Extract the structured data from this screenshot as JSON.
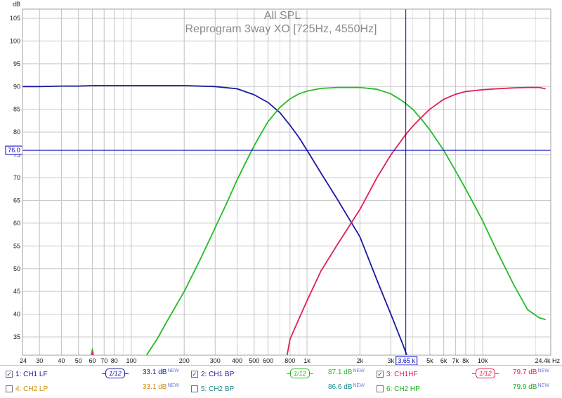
{
  "colors": {
    "background": "#ffffff",
    "grid_major": "#c8c8c8",
    "grid_minor": "#e4e4e4",
    "axis_text": "#1a1a1a",
    "title_text": "#8a8a8a",
    "cursor": "#0000c0",
    "ch1_lf": "#1a1aa0",
    "ch1_bp": "#22bb22",
    "ch1_hf": "#e02050",
    "ch2_lp": "#c89010",
    "ch2_bp": "#1a8a8a",
    "ch2_hp": "#22aa22"
  },
  "chart_data": {
    "type": "line",
    "title": "All SPL",
    "subtitle": "Reprogram 3way XO [725Hz, 4550Hz]",
    "ylabel": "dB",
    "xlabel_unit": "Hz",
    "x_scale": "log",
    "xlim": [
      24,
      24400
    ],
    "ylim": [
      31,
      107
    ],
    "grid": true,
    "x_tick_labels": [
      {
        "v": 24,
        "t": "24"
      },
      {
        "v": 30,
        "t": "30"
      },
      {
        "v": 40,
        "t": "40"
      },
      {
        "v": 50,
        "t": "50"
      },
      {
        "v": 60,
        "t": "60"
      },
      {
        "v": 70,
        "t": "70"
      },
      {
        "v": 80,
        "t": "80"
      },
      {
        "v": 100,
        "t": "100"
      },
      {
        "v": 200,
        "t": "200"
      },
      {
        "v": 300,
        "t": "300"
      },
      {
        "v": 400,
        "t": "400"
      },
      {
        "v": 500,
        "t": "500"
      },
      {
        "v": 600,
        "t": "600"
      },
      {
        "v": 800,
        "t": "800"
      },
      {
        "v": 1000,
        "t": "1k"
      },
      {
        "v": 2000,
        "t": "2k"
      },
      {
        "v": 3000,
        "t": "3k"
      },
      {
        "v": 5000,
        "t": "5k"
      },
      {
        "v": 6000,
        "t": "6k"
      },
      {
        "v": 7000,
        "t": "7k"
      },
      {
        "v": 8000,
        "t": "8k"
      },
      {
        "v": 10000,
        "t": "10k"
      },
      {
        "v": 24400,
        "t": "24.4k Hz"
      }
    ],
    "y_ticks": [
      35,
      40,
      45,
      50,
      55,
      60,
      65,
      70,
      75,
      80,
      85,
      90,
      95,
      100,
      105
    ],
    "cursor": {
      "x": 3650,
      "x_label": "3.65 k",
      "y": 76.0,
      "y_label": "76.0"
    },
    "series": [
      {
        "name": "1: CH1 LF",
        "color": "#1a1aa0",
        "x": [
          24,
          30,
          40,
          50,
          60,
          80,
          100,
          150,
          200,
          300,
          400,
          500,
          600,
          700,
          800,
          900,
          1000,
          1200,
          1500,
          2000,
          2500,
          3000,
          3500,
          3700
        ],
        "y": [
          90.0,
          90.0,
          90.1,
          90.1,
          90.2,
          90.2,
          90.2,
          90.2,
          90.2,
          90.0,
          89.5,
          88.2,
          86.5,
          84.3,
          81.5,
          78.8,
          76.0,
          71.0,
          65.0,
          57.0,
          47.5,
          40.0,
          33.5,
          31.0
        ]
      },
      {
        "name": "2: CH1 BP",
        "color": "#22bb22",
        "x": [
          122,
          140,
          160,
          200,
          250,
          300,
          350,
          400,
          450,
          500,
          550,
          600,
          700,
          800,
          900,
          1000,
          1200,
          1500,
          2000,
          2500,
          3000,
          3500,
          4000,
          4550,
          5000,
          6000,
          7000,
          8000,
          10000,
          12000,
          15000,
          18000,
          21000,
          22800
        ],
        "y": [
          31.0,
          34.5,
          38.5,
          45.0,
          52.5,
          59.0,
          64.5,
          69.5,
          73.5,
          77.0,
          79.8,
          82.3,
          85.4,
          87.3,
          88.4,
          89.0,
          89.6,
          89.8,
          89.8,
          89.4,
          88.4,
          86.8,
          85.0,
          82.5,
          80.5,
          76.0,
          71.5,
          67.5,
          60.5,
          54.0,
          46.5,
          41.0,
          39.2,
          38.8
        ]
      },
      {
        "name": "3: CH1HF",
        "color": "#e02050",
        "x": [
          770,
          800,
          900,
          1000,
          1200,
          1500,
          2000,
          2500,
          3000,
          3650,
          4000,
          4550,
          5000,
          6000,
          7000,
          8000,
          10000,
          12000,
          15000,
          18000,
          21000,
          22800
        ],
        "y": [
          31.0,
          34.5,
          39.0,
          43.0,
          49.5,
          55.5,
          63.0,
          70.0,
          75.0,
          79.5,
          81.3,
          83.5,
          85.0,
          87.2,
          88.3,
          88.9,
          89.3,
          89.5,
          89.7,
          89.8,
          89.8,
          89.5
        ]
      }
    ],
    "spike": {
      "x": 60,
      "y": 32.5
    }
  },
  "legend": {
    "row1": [
      {
        "label": "1: CH1 LF",
        "checked": true,
        "color": "#1a1aa0",
        "smoothing": "1/12",
        "db": "33.1 dB",
        "db_color": "#1a1aa0",
        "new": "NEW"
      },
      {
        "label": "2: CH1 BP",
        "checked": true,
        "color": "#1a1aa0",
        "smoothing": "1/12",
        "smooth_color": "#22bb22",
        "db": "87.1 dB",
        "db_color": "#22bb22",
        "new": "NEW"
      },
      {
        "label": "3: CH1HF",
        "checked": true,
        "color": "#e02050",
        "smoothing": "1/12",
        "db": "79.7 dB",
        "db_color": "#e02050",
        "new": "NEW"
      }
    ],
    "row2": [
      {
        "label": "4: CH2 LP",
        "checked": false,
        "color": "#c89010",
        "db": "33.1 dB",
        "new": "NEW"
      },
      {
        "label": "5: CH2 BP",
        "checked": false,
        "color": "#1a8a8a",
        "db": "86.6 dB",
        "new": "NEW"
      },
      {
        "label": "6: CH2 HP",
        "checked": false,
        "color": "#22aa22",
        "db": "79.9 dB",
        "new": "NEW"
      }
    ]
  }
}
